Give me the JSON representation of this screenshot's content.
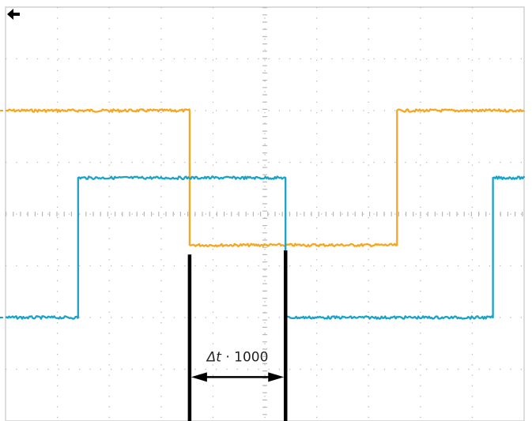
{
  "chart_data": {
    "type": "line",
    "title": "",
    "xlabel": "",
    "ylabel": "",
    "grid": true,
    "x_divisions": 10,
    "y_divisions": 8,
    "xlim": [
      0,
      10
    ],
    "ylim": [
      0,
      8
    ],
    "series": [
      {
        "color": "#f5a623",
        "x": [
          0,
          3.55,
          3.55,
          7.55,
          7.55,
          10
        ],
        "y": [
          6.0,
          6.0,
          3.4,
          3.4,
          6.0,
          6.0
        ]
      },
      {
        "color": "#1aa3c8",
        "x": [
          0,
          1.4,
          1.4,
          5.4,
          5.4,
          9.4,
          9.4,
          10
        ],
        "y": [
          2.0,
          2.0,
          4.7,
          4.7,
          2.0,
          2.0,
          4.7,
          4.7
        ]
      }
    ],
    "annotation": {
      "label_math": "Δt",
      "label_rest": " · 1000",
      "x_start": 3.55,
      "x_end": 5.4,
      "arrow_y": 0.85
    },
    "colors": {
      "background": "#ffffff",
      "frame": "#dcdcdc",
      "grid": "#b9b9b9",
      "marker": "#000000"
    },
    "icons": {
      "trigger": "arrow-left-icon"
    }
  }
}
